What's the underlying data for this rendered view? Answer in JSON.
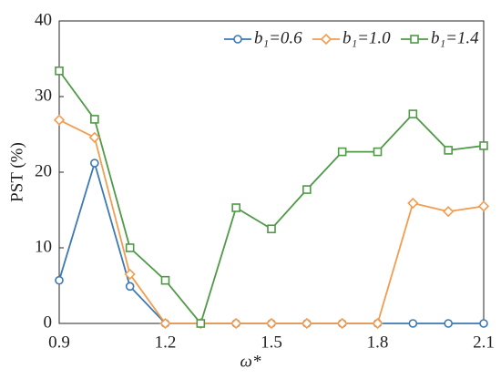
{
  "chart_data": {
    "type": "line",
    "xlabel": "ω*",
    "ylabel": "PST (%)",
    "x": [
      0.9,
      1.0,
      1.1,
      1.2,
      1.3,
      1.4,
      1.5,
      1.6,
      1.7,
      1.8,
      1.9,
      2.0,
      2.1
    ],
    "series": [
      {
        "name": "b₁=0.6",
        "color": "#3c78b4",
        "marker": "circle",
        "values": [
          5.7,
          21.2,
          4.9,
          0,
          0,
          0,
          0,
          0,
          0,
          0,
          0,
          0,
          0
        ]
      },
      {
        "name": "b₁=1.0",
        "color": "#f39c4f",
        "marker": "diamond",
        "values": [
          26.9,
          24.6,
          6.5,
          0,
          0,
          0,
          0,
          0,
          0,
          0,
          15.9,
          14.8,
          15.5
        ]
      },
      {
        "name": "b₁=1.4",
        "color": "#4f9a46",
        "marker": "square",
        "values": [
          33.4,
          27.0,
          10.0,
          5.7,
          0,
          15.3,
          12.5,
          17.7,
          22.7,
          22.7,
          27.7,
          22.9,
          23.5
        ]
      }
    ],
    "xlim": [
      0.9,
      2.1
    ],
    "xticks": [
      0.9,
      1.2,
      1.5,
      1.8,
      2.1
    ],
    "ylim": [
      0,
      40
    ],
    "yticks": [
      0,
      10,
      20,
      30,
      40
    ],
    "legend": "upper right",
    "grid": false
  }
}
